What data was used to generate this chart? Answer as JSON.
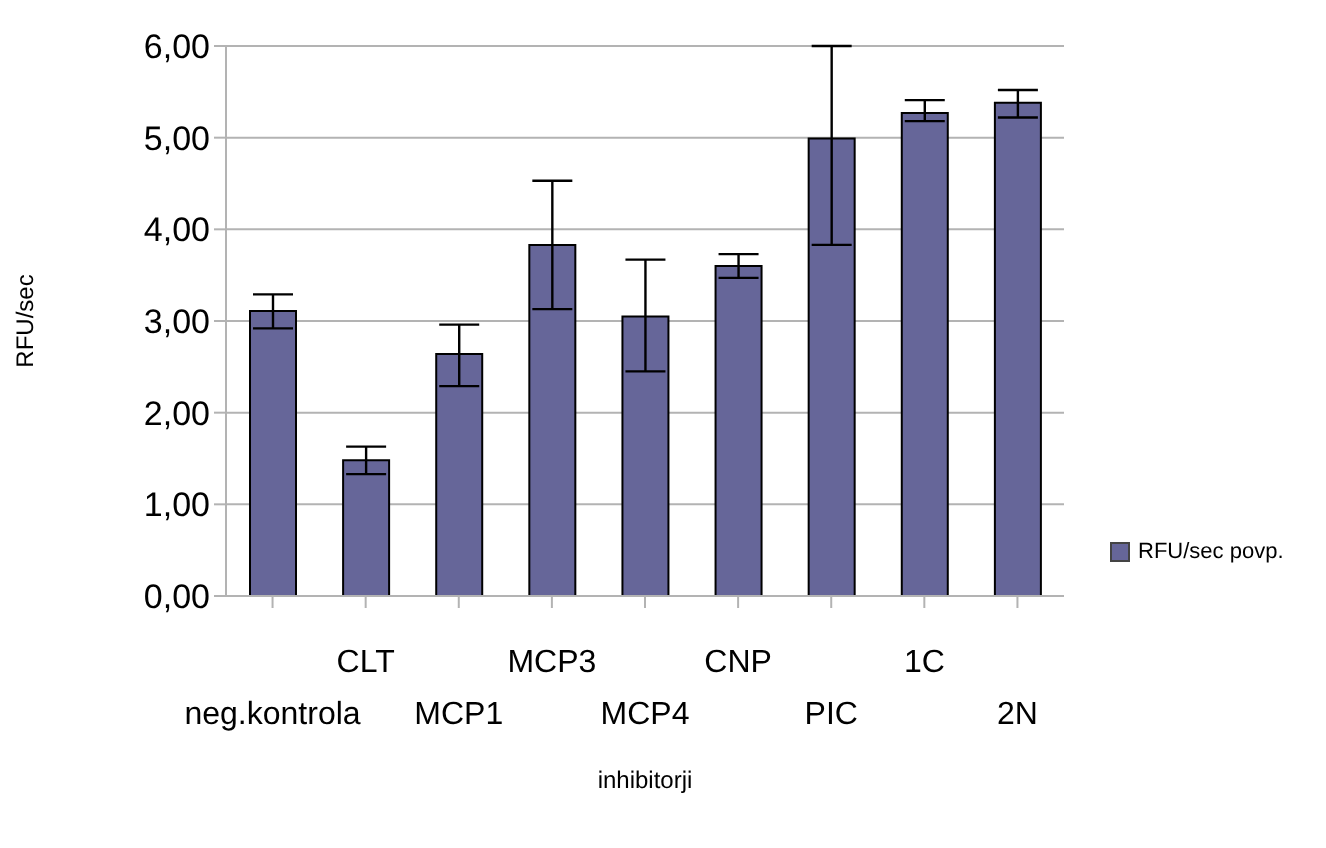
{
  "chart_data": {
    "type": "bar",
    "xlabel": "inhibitorji",
    "ylabel": "RFU/sec",
    "categories": [
      "neg.kontrola",
      "CLT",
      "MCP1",
      "MCP3",
      "MCP4",
      "CNP",
      "PIC",
      "1C",
      "2N"
    ],
    "series": [
      {
        "name": "RFU/sec povp.",
        "color": "#666699",
        "values": [
          3.11,
          1.48,
          2.64,
          3.83,
          3.05,
          3.6,
          4.99,
          5.27,
          5.38
        ],
        "errors": [
          [
            2.92,
            3.29
          ],
          [
            1.33,
            1.63
          ],
          [
            2.29,
            2.96
          ],
          [
            3.13,
            4.53
          ],
          [
            2.45,
            3.67
          ],
          [
            3.47,
            3.73
          ],
          [
            3.83,
            6.0
          ],
          [
            5.18,
            5.41
          ],
          [
            5.22,
            5.52
          ]
        ]
      }
    ],
    "ylim": [
      0,
      6
    ],
    "yticks": [
      {
        "value": 0,
        "label": "0,00"
      },
      {
        "value": 1,
        "label": "1,00"
      },
      {
        "value": 2,
        "label": "2,00"
      },
      {
        "value": 3,
        "label": "3,00"
      },
      {
        "value": 4,
        "label": "4,00"
      },
      {
        "value": 5,
        "label": "5,00"
      },
      {
        "value": 6,
        "label": "6,00"
      }
    ],
    "grid": "y",
    "legend": "right"
  }
}
